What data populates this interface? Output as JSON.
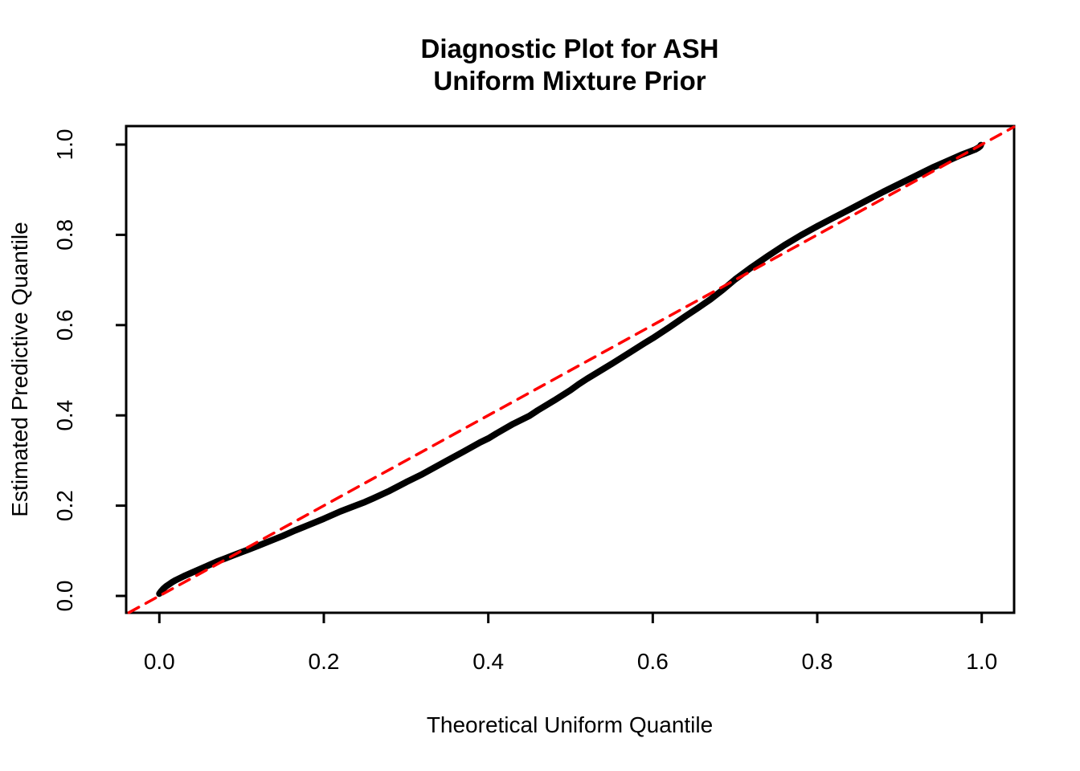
{
  "title": {
    "line1": "Diagnostic Plot for ASH",
    "line2": "Uniform Mixture Prior"
  },
  "colors": {
    "curve": "#000000",
    "reference_line": "#FF0000",
    "axis": "#000000",
    "background": "#FFFFFF"
  },
  "chart_data": {
    "type": "line",
    "title": "Diagnostic Plot for ASH\nUniform Mixture Prior",
    "xlabel": "Theoretical Uniform Quantile",
    "ylabel": "Estimated Predictive Quantile",
    "xlim": [
      -0.04,
      1.04
    ],
    "ylim": [
      -0.04,
      1.04
    ],
    "grid": false,
    "legend": null,
    "x_ticks": [
      {
        "value": 0.0,
        "label": "0.0"
      },
      {
        "value": 0.2,
        "label": "0.2"
      },
      {
        "value": 0.4,
        "label": "0.4"
      },
      {
        "value": 0.6,
        "label": "0.6"
      },
      {
        "value": 0.8,
        "label": "0.8"
      },
      {
        "value": 1.0,
        "label": "1.0"
      }
    ],
    "y_ticks": [
      {
        "value": 0.0,
        "label": "0.0"
      },
      {
        "value": 0.2,
        "label": "0.2"
      },
      {
        "value": 0.4,
        "label": "0.4"
      },
      {
        "value": 0.6,
        "label": "0.6"
      },
      {
        "value": 0.8,
        "label": "0.8"
      },
      {
        "value": 1.0,
        "label": "1.0"
      }
    ],
    "series": [
      {
        "name": "estimated-predictive-quantiles",
        "style": "solid",
        "color": "#000000",
        "line_width": 8,
        "points": [
          [
            0.0,
            0.005
          ],
          [
            0.002,
            0.01
          ],
          [
            0.005,
            0.016
          ],
          [
            0.008,
            0.021
          ],
          [
            0.012,
            0.026
          ],
          [
            0.016,
            0.031
          ],
          [
            0.02,
            0.035
          ],
          [
            0.03,
            0.044
          ],
          [
            0.04,
            0.052
          ],
          [
            0.05,
            0.06
          ],
          [
            0.06,
            0.068
          ],
          [
            0.07,
            0.076
          ],
          [
            0.08,
            0.083
          ],
          [
            0.09,
            0.09
          ],
          [
            0.1,
            0.097
          ],
          [
            0.11,
            0.104
          ],
          [
            0.12,
            0.111
          ],
          [
            0.135,
            0.122
          ],
          [
            0.15,
            0.133
          ],
          [
            0.165,
            0.145
          ],
          [
            0.18,
            0.156
          ],
          [
            0.2,
            0.171
          ],
          [
            0.22,
            0.187
          ],
          [
            0.24,
            0.201
          ],
          [
            0.25,
            0.208
          ],
          [
            0.26,
            0.216
          ],
          [
            0.28,
            0.233
          ],
          [
            0.3,
            0.252
          ],
          [
            0.32,
            0.27
          ],
          [
            0.34,
            0.29
          ],
          [
            0.35,
            0.3
          ],
          [
            0.37,
            0.32
          ],
          [
            0.39,
            0.34
          ],
          [
            0.4,
            0.349
          ],
          [
            0.41,
            0.36
          ],
          [
            0.43,
            0.381
          ],
          [
            0.45,
            0.399
          ],
          [
            0.46,
            0.411
          ],
          [
            0.48,
            0.433
          ],
          [
            0.5,
            0.456
          ],
          [
            0.51,
            0.469
          ],
          [
            0.52,
            0.481
          ],
          [
            0.54,
            0.503
          ],
          [
            0.55,
            0.514
          ],
          [
            0.57,
            0.537
          ],
          [
            0.59,
            0.56
          ],
          [
            0.6,
            0.571
          ],
          [
            0.62,
            0.595
          ],
          [
            0.64,
            0.62
          ],
          [
            0.655,
            0.638
          ],
          [
            0.67,
            0.657
          ],
          [
            0.685,
            0.678
          ],
          [
            0.7,
            0.701
          ],
          [
            0.72,
            0.728
          ],
          [
            0.74,
            0.753
          ],
          [
            0.76,
            0.777
          ],
          [
            0.78,
            0.799
          ],
          [
            0.8,
            0.819
          ],
          [
            0.82,
            0.838
          ],
          [
            0.84,
            0.857
          ],
          [
            0.86,
            0.876
          ],
          [
            0.88,
            0.895
          ],
          [
            0.9,
            0.913
          ],
          [
            0.92,
            0.931
          ],
          [
            0.94,
            0.949
          ],
          [
            0.96,
            0.965
          ],
          [
            0.975,
            0.977
          ],
          [
            0.985,
            0.984
          ],
          [
            0.992,
            0.989
          ],
          [
            0.996,
            0.993
          ],
          [
            0.998,
            0.996
          ],
          [
            0.999,
            0.999
          ]
        ]
      },
      {
        "name": "reference-diagonal-y-equals-x",
        "style": "dashed",
        "color": "#FF0000",
        "line_width": 3.5,
        "dash": [
          14,
          10
        ],
        "points": [
          [
            -0.037,
            -0.037
          ],
          [
            1.039,
            1.039
          ]
        ]
      }
    ]
  }
}
